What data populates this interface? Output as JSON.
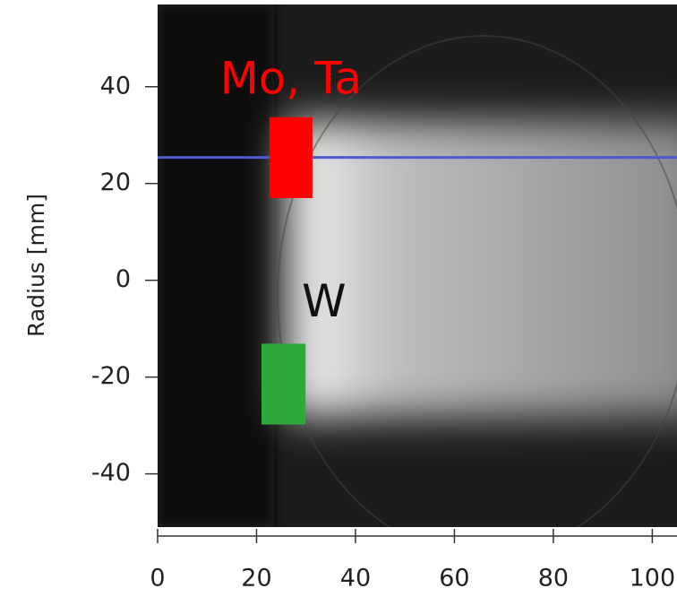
{
  "chart_data": {
    "type": "image",
    "ylabel": "Radius [mm]",
    "xlim": [
      0,
      105
    ],
    "ylim": [
      -51,
      57
    ],
    "xticks": [
      0,
      20,
      40,
      60,
      80,
      100
    ],
    "yticks": [
      -40,
      -20,
      0,
      20,
      40
    ],
    "hlines": [
      {
        "value": 25.4,
        "color": "#4b5bd0"
      }
    ],
    "regions": [
      {
        "name": "Mo, Ta",
        "color": "#ff0000",
        "x": [
          22.6,
          31.3
        ],
        "y": [
          17.0,
          33.7
        ]
      },
      {
        "name": "W",
        "color": "#2eaa3c",
        "x": [
          21.0,
          29.9
        ],
        "y": [
          -29.8,
          -13.1
        ]
      }
    ]
  }
}
